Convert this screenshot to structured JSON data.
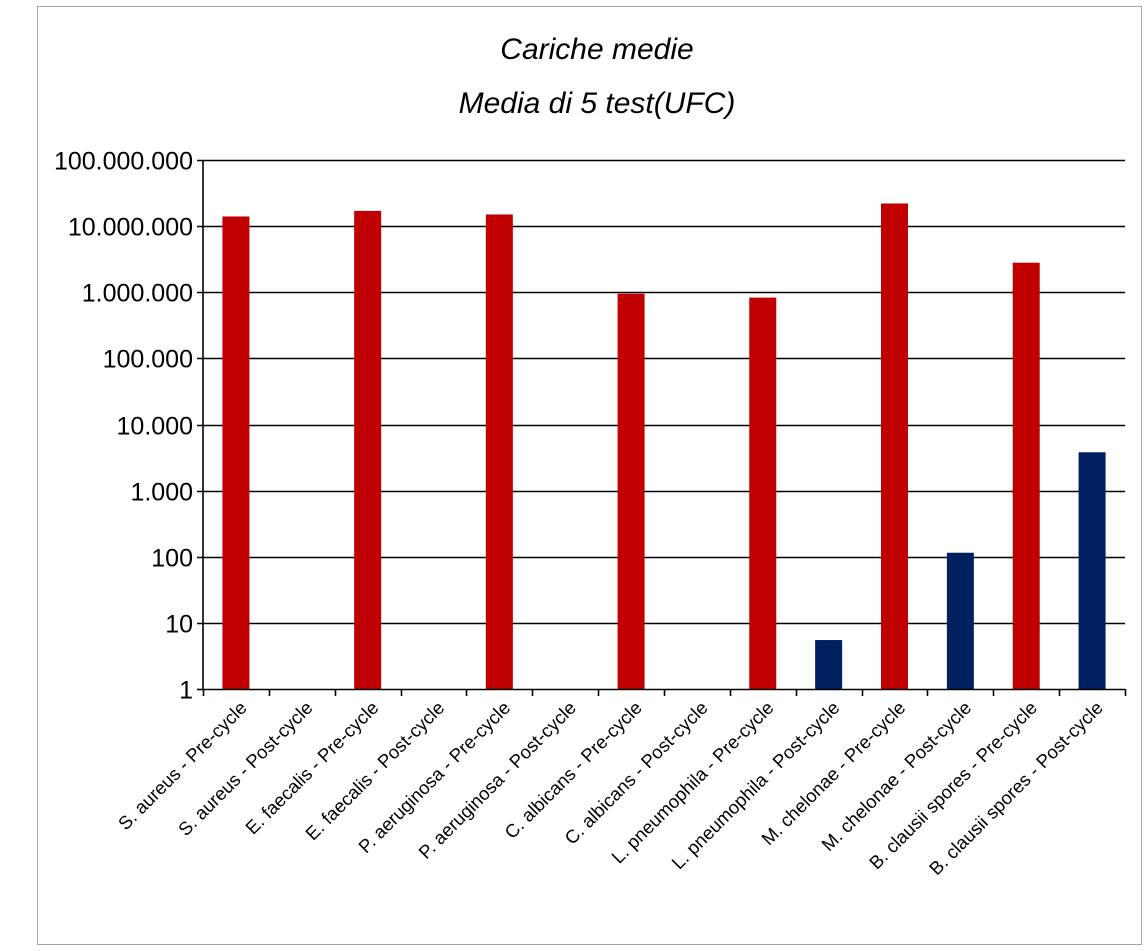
{
  "chart_data": {
    "type": "bar",
    "title_lines": [
      "Cariche medie",
      "Media di 5 test(UFC)"
    ],
    "y_scale": "log",
    "ylim": [
      1,
      100000000
    ],
    "y_ticks": [
      {
        "value": 1,
        "label": "1"
      },
      {
        "value": 10,
        "label": "10"
      },
      {
        "value": 100,
        "label": "100"
      },
      {
        "value": 1000,
        "label": "1.000"
      },
      {
        "value": 10000,
        "label": "10.000"
      },
      {
        "value": 100000,
        "label": "100.000"
      },
      {
        "value": 1000000,
        "label": "1.000.000"
      },
      {
        "value": 10000000,
        "label": "10.000.000"
      },
      {
        "value": 100000000,
        "label": "100.000.000"
      }
    ],
    "grid": true,
    "legend": "none",
    "categories": [
      "S. aureus - Pre-cycle",
      "S. aureus - Post-cycle",
      "E. faecalis - Pre-cycle",
      "E. faecalis - Post-cycle",
      "P. aeruginosa - Pre-cycle",
      "P. aeruginosa - Post-cycle",
      "C. albicans - Pre-cycle",
      "C. albicans - Post-cycle",
      "L. pneumophila - Pre-cycle",
      "L. pneumophila - Post-cycle",
      "M. chelonae - Pre-cycle",
      "M. chelonae - Post-cycle",
      "B. clausii spores - Pre-cycle",
      "B. clausii spores - Post-cycle"
    ],
    "values": [
      14000000,
      1,
      17000000,
      1,
      15000000,
      1,
      950000,
      1,
      830000,
      5.5,
      22000000,
      115,
      2800000,
      3800
    ],
    "colors": {
      "pre_cycle": "#c00000",
      "post_cycle": "#002060"
    }
  }
}
